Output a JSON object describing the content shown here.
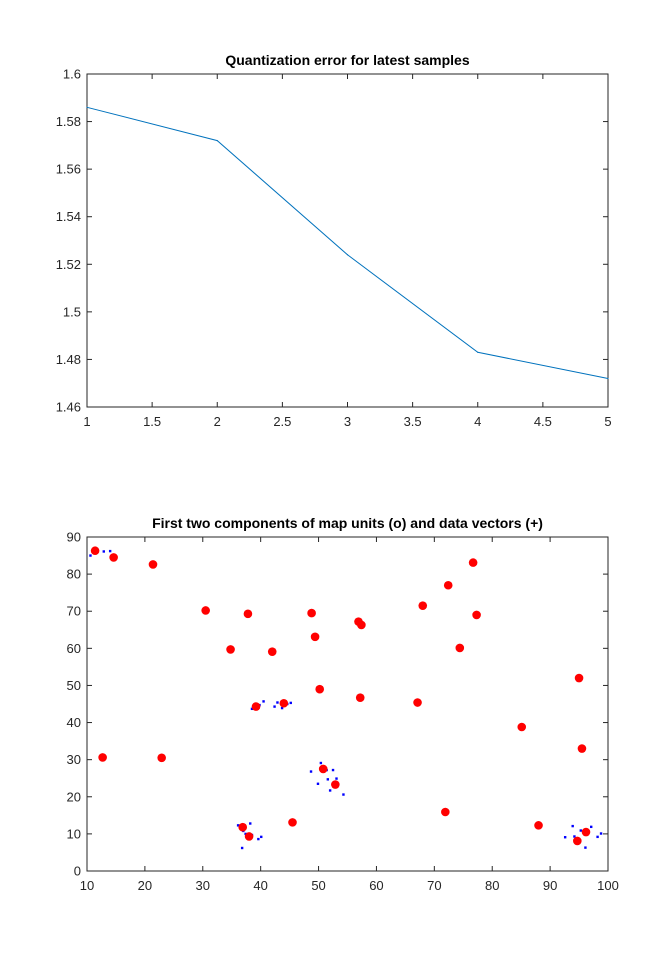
{
  "chart_data": [
    {
      "type": "line",
      "title": "Quantization error for latest samples",
      "xlabel": "",
      "ylabel": "",
      "xlim": [
        1,
        5
      ],
      "ylim": [
        1.46,
        1.6
      ],
      "xticks": [
        1,
        1.5,
        2,
        2.5,
        3,
        3.5,
        4,
        4.5,
        5
      ],
      "xtick_labels": [
        "1",
        "1.5",
        "2",
        "2.5",
        "3",
        "3.5",
        "4",
        "4.5",
        "5"
      ],
      "yticks": [
        1.46,
        1.48,
        1.5,
        1.52,
        1.54,
        1.56,
        1.58,
        1.6
      ],
      "ytick_labels": [
        "1.46",
        "1.48",
        "1.5",
        "1.52",
        "1.54",
        "1.56",
        "1.58",
        "1.6"
      ],
      "grid": false,
      "series": [
        {
          "color": "#0072bd",
          "x": [
            1,
            2,
            3,
            4,
            5
          ],
          "values": [
            1.586,
            1.572,
            1.524,
            1.483,
            1.472
          ]
        }
      ]
    },
    {
      "type": "scatter",
      "title": "First two components of map units (o) and data vectors (+)",
      "xlabel": "",
      "ylabel": "",
      "xlim": [
        10,
        100
      ],
      "ylim": [
        0,
        90
      ],
      "xticks": [
        10,
        20,
        30,
        40,
        50,
        60,
        70,
        80,
        90,
        100
      ],
      "xtick_labels": [
        "10",
        "20",
        "30",
        "40",
        "50",
        "60",
        "70",
        "80",
        "90",
        "100"
      ],
      "yticks": [
        0,
        10,
        20,
        30,
        40,
        50,
        60,
        70,
        80,
        90
      ],
      "ytick_labels": [
        "0",
        "10",
        "20",
        "30",
        "40",
        "50",
        "60",
        "70",
        "80",
        "90"
      ],
      "grid": false,
      "series": [
        {
          "marker": "dot",
          "color": "#0000ff",
          "points": [
            [
              10.6,
              85.0
            ],
            [
              12.9,
              86.1
            ],
            [
              14.0,
              86.2
            ],
            [
              14.6,
              84.3
            ],
            [
              38.5,
              43.7
            ],
            [
              39.8,
              44.7
            ],
            [
              40.5,
              45.7
            ],
            [
              42.4,
              44.3
            ],
            [
              42.9,
              45.4
            ],
            [
              43.7,
              43.9
            ],
            [
              44.6,
              45.0
            ],
            [
              45.2,
              45.3
            ],
            [
              48.7,
              26.8
            ],
            [
              49.9,
              23.5
            ],
            [
              50.4,
              29.1
            ],
            [
              51.4,
              27.2
            ],
            [
              51.6,
              24.7
            ],
            [
              52.0,
              21.7
            ],
            [
              53.1,
              24.9
            ],
            [
              52.5,
              27.2
            ],
            [
              54.3,
              20.6
            ],
            [
              36.1,
              12.3
            ],
            [
              37.0,
              10.8
            ],
            [
              36.8,
              6.2
            ],
            [
              38.2,
              12.8
            ],
            [
              38.5,
              9.7
            ],
            [
              39.6,
              8.6
            ],
            [
              40.1,
              9.2
            ],
            [
              37.4,
              10.0
            ],
            [
              92.6,
              9.1
            ],
            [
              93.9,
              12.1
            ],
            [
              94.2,
              9.3
            ],
            [
              95.1,
              7.8
            ],
            [
              95.3,
              10.9
            ],
            [
              96.1,
              6.3
            ],
            [
              97.1,
              11.9
            ],
            [
              98.2,
              9.2
            ],
            [
              98.8,
              10.1
            ]
          ]
        },
        {
          "marker": "circle",
          "color": "#ff0000",
          "points": [
            [
              11.4,
              86.3
            ],
            [
              14.6,
              84.5
            ],
            [
              21.4,
              82.6
            ],
            [
              30.5,
              70.2
            ],
            [
              37.8,
              69.3
            ],
            [
              48.8,
              69.5
            ],
            [
              49.4,
              63.1
            ],
            [
              56.9,
              67.2
            ],
            [
              57.4,
              66.3
            ],
            [
              68.0,
              71.5
            ],
            [
              72.4,
              77.0
            ],
            [
              76.7,
              83.1
            ],
            [
              77.3,
              69.0
            ],
            [
              34.8,
              59.7
            ],
            [
              42.0,
              59.1
            ],
            [
              74.4,
              60.1
            ],
            [
              50.2,
              49.0
            ],
            [
              57.2,
              46.7
            ],
            [
              67.1,
              45.4
            ],
            [
              95.0,
              52.0
            ],
            [
              39.2,
              44.3
            ],
            [
              44.0,
              45.2
            ],
            [
              12.7,
              30.6
            ],
            [
              22.9,
              30.5
            ],
            [
              85.1,
              38.8
            ],
            [
              95.5,
              33.0
            ],
            [
              50.8,
              27.5
            ],
            [
              52.9,
              23.3
            ],
            [
              45.5,
              13.1
            ],
            [
              71.9,
              15.9
            ],
            [
              88.0,
              12.3
            ],
            [
              36.9,
              11.8
            ],
            [
              38.0,
              9.3
            ],
            [
              94.7,
              8.1
            ],
            [
              96.2,
              10.5
            ]
          ]
        }
      ]
    }
  ]
}
